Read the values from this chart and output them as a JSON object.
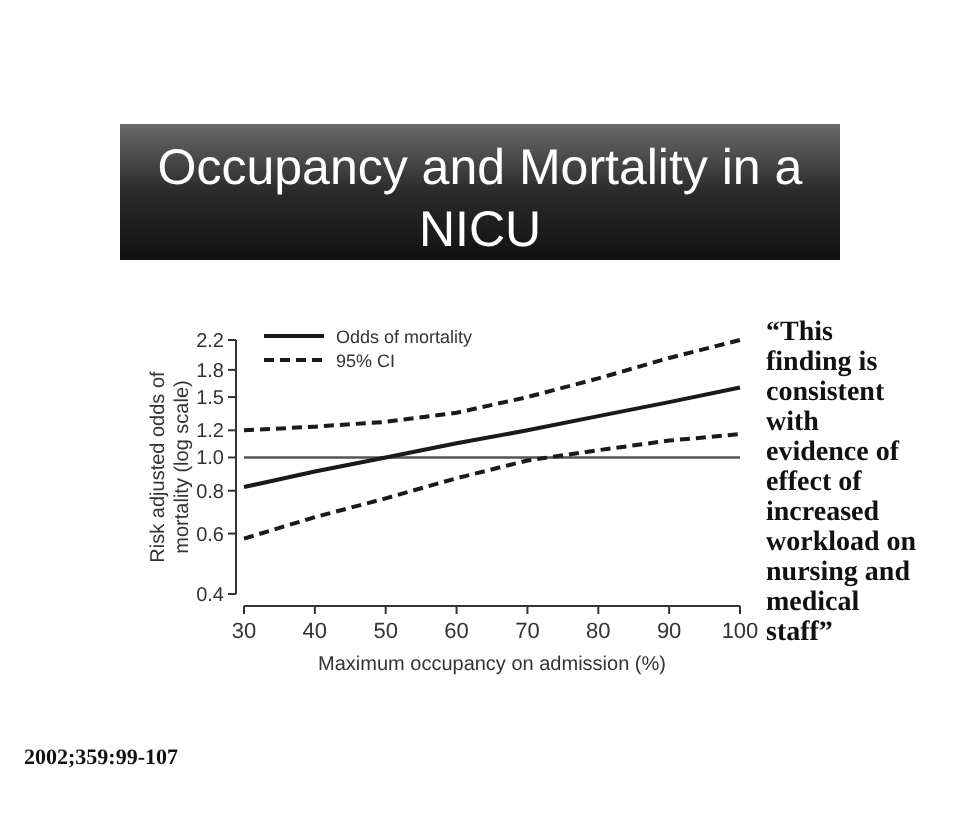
{
  "chart_data": {
    "type": "line",
    "title": "Occupancy and Mortality in a NICU",
    "xlabel": "Maximum occupancy on admission (%)",
    "ylabel": "Risk adjusted odds of mortality (log scale)",
    "log": "y",
    "x": [
      30,
      40,
      50,
      60,
      70,
      80,
      90,
      100
    ],
    "series": [
      {
        "name": "Odds of mortality",
        "color": "#1a1a1a",
        "line_style": "solid",
        "values": [
          0.82,
          0.91,
          1.0,
          1.1,
          1.2,
          1.32,
          1.45,
          1.6
        ]
      },
      {
        "name": "95% CI",
        "color": "#1a1a1a",
        "line_style": "dashed",
        "values": [
          1.2,
          1.23,
          1.27,
          1.35,
          1.5,
          1.7,
          1.95,
          2.2
        ]
      },
      {
        "color": "#1a1a1a",
        "line_style": "dashed",
        "values": [
          0.58,
          0.67,
          0.76,
          0.87,
          0.98,
          1.05,
          1.12,
          1.17
        ]
      }
    ],
    "xlim": [
      30,
      100
    ],
    "xticks": [
      30,
      40,
      50,
      60,
      70,
      80,
      90,
      100
    ],
    "ylim": [
      0.4,
      2.2
    ],
    "yticks": [
      0.4,
      0.6,
      0.8,
      {
        "value": 1.0,
        "label": "1.0"
      },
      1.2,
      1.5,
      1.8,
      2.2
    ],
    "ref_lines": [
      {
        "axis": "y",
        "value": 1.0,
        "color": "#555555"
      }
    ],
    "grid": false,
    "legend": "top left",
    "annotations": [
      "“This finding is consistent with evidence of effect of increased workload on nursing and medical staff”",
      "2002;359:99-107"
    ]
  }
}
